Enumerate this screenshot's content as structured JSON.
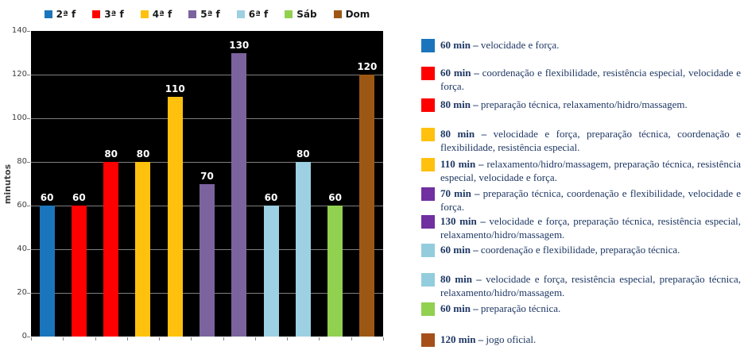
{
  "chart_data": {
    "type": "bar",
    "title": "",
    "xlabel": "",
    "ylabel": "minutos",
    "ylim": [
      0,
      140
    ],
    "ytick_step": 20,
    "grid": true,
    "gridline_color": "#7f7f7f",
    "plot_background": "#000000",
    "value_label_color": "#ffffff",
    "legend_position": "top",
    "legend": [
      {
        "label": "2ª f",
        "color": "#1B75BC"
      },
      {
        "label": "3ª f",
        "color": "#FF0000"
      },
      {
        "label": "4ª f",
        "color": "#FFC10D"
      },
      {
        "label": "5ª f",
        "color": "#7B639E"
      },
      {
        "label": "6ª f",
        "color": "#9DD0E2"
      },
      {
        "label": "Sáb",
        "color": "#92D050"
      },
      {
        "label": "Dom",
        "color": "#9C5714"
      }
    ],
    "bars": [
      {
        "series": "2ª f",
        "value": 60,
        "color": "#1B75BC"
      },
      {
        "series": "3ª f",
        "value": 60,
        "color": "#FF0000"
      },
      {
        "series": "3ª f",
        "value": 80,
        "color": "#FF0000"
      },
      {
        "series": "4ª f",
        "value": 80,
        "color": "#FFC10D"
      },
      {
        "series": "4ª f",
        "value": 110,
        "color": "#FFC10D"
      },
      {
        "series": "5ª f",
        "value": 70,
        "color": "#7B639E"
      },
      {
        "series": "5ª f",
        "value": 130,
        "color": "#7B639E"
      },
      {
        "series": "6ª f",
        "value": 60,
        "color": "#9DD0E2"
      },
      {
        "series": "6ª f",
        "value": 80,
        "color": "#9DD0E2"
      },
      {
        "series": "Sáb",
        "value": 60,
        "color": "#92D050"
      },
      {
        "series": "Dom",
        "value": 120,
        "color": "#9C5714"
      }
    ]
  },
  "annotations_panel": {
    "items": [
      {
        "color": "#1B75BC",
        "duration": "60 min –",
        "text": "velocidade e força."
      },
      {
        "color": "#FF0000",
        "duration": "60 min –",
        "text": "coordenação e flexibilidade, resistência especial, velocidade e força."
      },
      {
        "color": "#FF0000",
        "duration": "80 min –",
        "text": "preparação técnica, relaxamento/hidro/massagem."
      },
      {
        "color": "#FFC10D",
        "duration": "80 min –",
        "text": "velocidade e força, preparação técnica, coordenação e flexibilidade, resistência especial."
      },
      {
        "color": "#FFC10D",
        "duration": "110 min –",
        "text": "relaxamento/hidro/massagem, preparação técnica, resistência especial, velocidade e força."
      },
      {
        "color": "#7030A0",
        "duration": "70 min –",
        "text": "preparação técnica, coordenação e flexibilidade, velocidade e força."
      },
      {
        "color": "#7030A0",
        "duration": "130 min –",
        "text": "velocidade e força, preparação técnica, resistência especial, relaxamento/hidro/massagem."
      },
      {
        "color": "#93CDDD",
        "duration": "60 min –",
        "text": "coordenação e flexibilidade, preparação técnica."
      },
      {
        "color": "#93CDDD",
        "duration": "80 min –",
        "text": "velocidade e força, resistência especial, preparação técnica, relaxamento/hidro/massagem."
      },
      {
        "color": "#92D050",
        "duration": "60 min –",
        "text": "preparação técnica."
      },
      {
        "color": "#A5501B",
        "duration": "120 min –",
        "text": "jogo oficial."
      }
    ]
  }
}
